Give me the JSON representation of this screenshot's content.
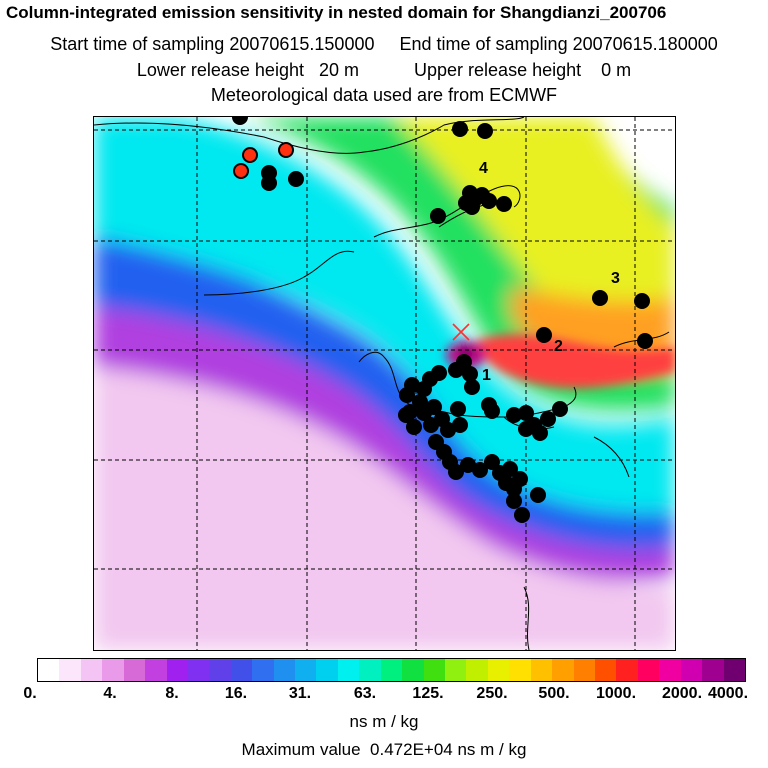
{
  "header": {
    "title": "Column-integrated emission sensitivity in nested domain for Shangdianzi_200706",
    "start_label": "Start time of sampling 20070615.150000",
    "end_label": "End time of sampling 20070615.180000",
    "lower_label": "Lower release height   20 m",
    "upper_label": "Upper release height    0 m",
    "met_label": "Meteorological data used are from ECMWF"
  },
  "map": {
    "station_marker": "x-mark-icon",
    "point_labels": [
      "1",
      "2",
      "3",
      "4"
    ],
    "highlight_color": "#ff3010",
    "point_color": "#000000"
  },
  "colorbar": {
    "tick_labels": [
      "0.",
      "4.",
      "8.",
      "16.",
      "31.",
      "63.",
      "125.",
      "250.",
      "500.",
      "1000.",
      "2000.",
      "4000."
    ],
    "colors": [
      "#ffffff",
      "#fbe6fb",
      "#f4c4f4",
      "#e99ae9",
      "#d86ad8",
      "#c240e0",
      "#a020f0",
      "#8030f0",
      "#6040e8",
      "#4050e8",
      "#3070f0",
      "#2090f0",
      "#10b0f0",
      "#00d0f0",
      "#00f0f0",
      "#00f0c0",
      "#00f080",
      "#10e040",
      "#40e010",
      "#90f010",
      "#c0f000",
      "#e8f000",
      "#ffe000",
      "#ffc000",
      "#ffa000",
      "#ff8000",
      "#ff5000",
      "#ff2020",
      "#ff0060",
      "#f000a0",
      "#d000b0",
      "#a00090",
      "#700070"
    ],
    "unit": "ns m / kg",
    "max_label": "Maximum value  0.472E+04 ns m / kg"
  }
}
